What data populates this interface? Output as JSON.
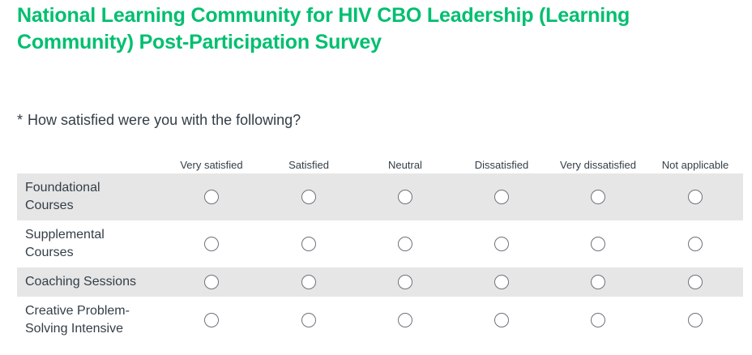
{
  "survey": {
    "title": "National Learning Community for HIV CBO Leadership (Learning Community) Post-Participation Survey"
  },
  "question": {
    "required_marker": "*",
    "text": "How satisfied were you with the following?"
  },
  "matrix": {
    "columns": [
      "Very satisfied",
      "Satisfied",
      "Neutral",
      "Dissatisfied",
      "Very dissatisfied",
      "Not applicable"
    ],
    "rows": [
      {
        "label": "Foundational Courses",
        "selected": null
      },
      {
        "label": "Supplemental Courses",
        "selected": null
      },
      {
        "label": "Coaching Sessions",
        "selected": null
      },
      {
        "label": "Creative Problem-Solving Intensive",
        "selected": null
      }
    ]
  },
  "colors": {
    "title": "#00bf6f",
    "row_shade": "#e6e6e6",
    "text": "#333e48"
  }
}
